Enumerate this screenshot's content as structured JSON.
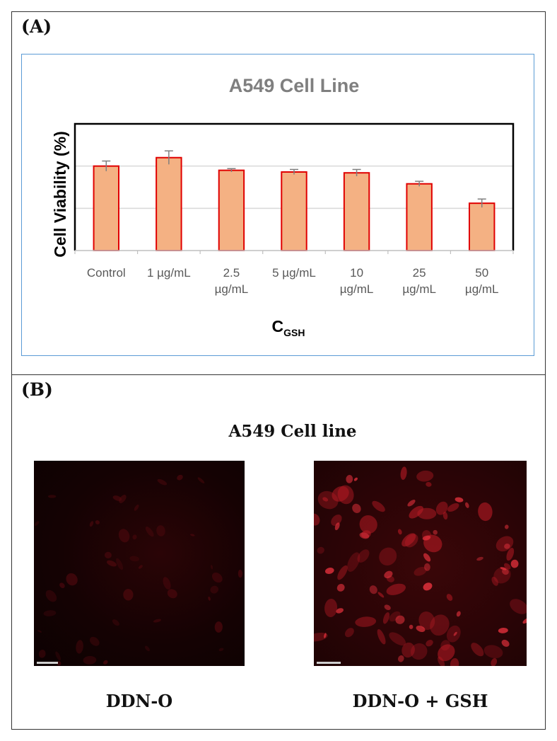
{
  "panel_a": {
    "label": "(A)"
  },
  "panel_b": {
    "label": "(B)",
    "heading": "A549 Cell line",
    "images": [
      {
        "caption": "DDN-O"
      },
      {
        "caption": "DDN-O + GSH"
      }
    ]
  },
  "chart_data": {
    "type": "bar",
    "title": "A549 Cell Line",
    "ylabel": "Cell Viability (%)",
    "xlabel": "C",
    "xlabel_subscript": "GSH",
    "categories": [
      [
        "Control"
      ],
      [
        "1 µg/mL"
      ],
      [
        "2.5",
        "µg/mL"
      ],
      [
        "5 µg/mL"
      ],
      [
        "10",
        "µg/mL"
      ],
      [
        "25",
        "µg/mL"
      ],
      [
        "50",
        "µg/mL"
      ]
    ],
    "values": [
      100,
      110,
      95,
      93,
      92,
      79,
      56
    ],
    "errors": [
      6,
      8,
      2,
      3,
      4,
      3,
      5
    ],
    "ylim": [
      0,
      150
    ],
    "gridlines": [
      50,
      100
    ],
    "grid": true,
    "legend": false,
    "colors": {
      "bar_fill": "#f4b183",
      "bar_edge": "#e00000",
      "error": "#7f7f7f",
      "grid": "#d9d9d9"
    }
  }
}
